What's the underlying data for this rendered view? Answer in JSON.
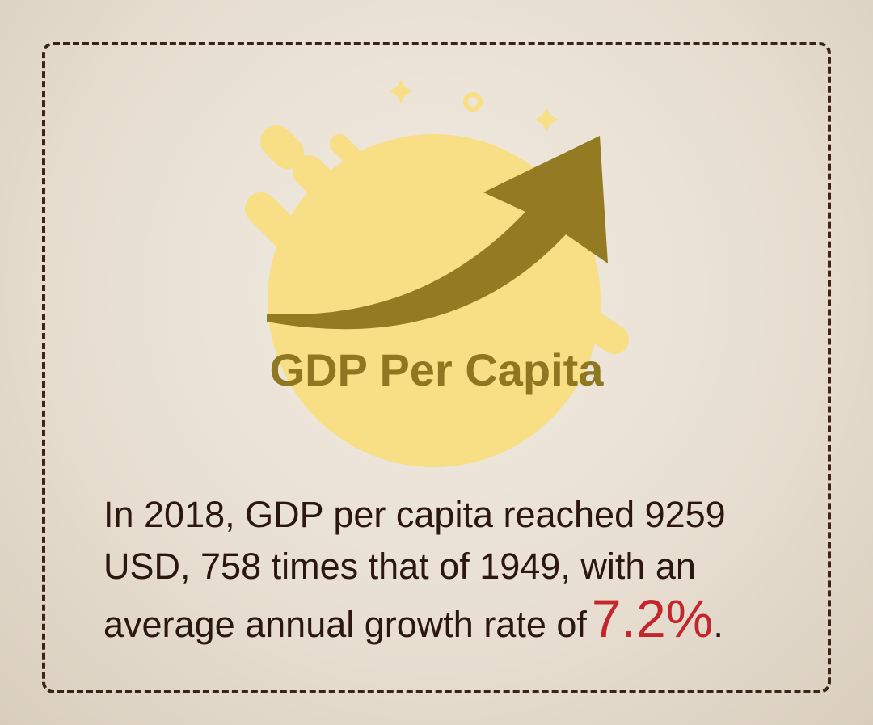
{
  "title": "GDP Per Capita",
  "body": {
    "text": "In 2018, GDP per capita reached 9259 USD, 758 times that of 1949, with an average annual growth rate of",
    "highlight": "7.2%",
    "end": "."
  }
}
